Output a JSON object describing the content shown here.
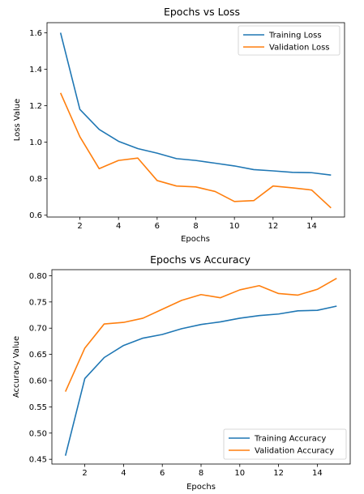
{
  "colors": {
    "training": "#1f77b4",
    "validation": "#ff7f0e"
  },
  "chart_data": [
    {
      "type": "line",
      "title": "Epochs vs Loss",
      "xlabel": "Epochs",
      "ylabel": "Loss Value",
      "x": [
        1,
        2,
        3,
        4,
        5,
        6,
        7,
        8,
        9,
        10,
        11,
        12,
        13,
        14,
        15
      ],
      "xlim": [
        0.3,
        15.7
      ],
      "ylim": [
        0.59,
        1.655
      ],
      "xticks": [
        2,
        4,
        6,
        8,
        10,
        12,
        14
      ],
      "yticks": [
        0.6,
        0.8,
        1.0,
        1.2,
        1.4,
        1.6
      ],
      "ytick_labels": [
        "0.6",
        "0.8",
        "1.0",
        "1.2",
        "1.4",
        "1.6"
      ],
      "legend_position": "top-right",
      "grid": false,
      "series": [
        {
          "name": "Training Loss",
          "color_key": "training",
          "values": [
            1.6,
            1.18,
            1.07,
            1.005,
            0.965,
            0.94,
            0.91,
            0.9,
            0.885,
            0.87,
            0.85,
            0.843,
            0.835,
            0.833,
            0.82
          ]
        },
        {
          "name": "Validation Loss",
          "color_key": "validation",
          "values": [
            1.27,
            1.03,
            0.855,
            0.9,
            0.913,
            0.79,
            0.76,
            0.755,
            0.73,
            0.675,
            0.68,
            0.76,
            0.75,
            0.738,
            0.64
          ]
        }
      ]
    },
    {
      "type": "line",
      "title": "Epochs vs Accuracy",
      "xlabel": "Epochs",
      "ylabel": "Accuracy Value",
      "x": [
        1,
        2,
        3,
        4,
        5,
        6,
        7,
        8,
        9,
        10,
        11,
        12,
        13,
        14,
        15
      ],
      "xlim": [
        0.3,
        15.7
      ],
      "ylim": [
        0.441,
        0.8115
      ],
      "xticks": [
        2,
        4,
        6,
        8,
        10,
        12,
        14
      ],
      "yticks": [
        0.45,
        0.5,
        0.55,
        0.6,
        0.65,
        0.7,
        0.75,
        0.8
      ],
      "ytick_labels": [
        "0.45",
        "0.50",
        "0.55",
        "0.60",
        "0.65",
        "0.70",
        "0.75",
        "0.80"
      ],
      "legend_position": "bottom-right",
      "grid": false,
      "series": [
        {
          "name": "Training Accuracy",
          "color_key": "training",
          "values": [
            0.457,
            0.604,
            0.644,
            0.667,
            0.681,
            0.688,
            0.699,
            0.707,
            0.712,
            0.719,
            0.724,
            0.727,
            0.733,
            0.734,
            0.742
          ]
        },
        {
          "name": "Validation Accuracy",
          "color_key": "validation",
          "values": [
            0.579,
            0.662,
            0.708,
            0.711,
            0.719,
            0.736,
            0.753,
            0.764,
            0.758,
            0.773,
            0.781,
            0.766,
            0.763,
            0.774,
            0.795
          ]
        }
      ]
    }
  ]
}
